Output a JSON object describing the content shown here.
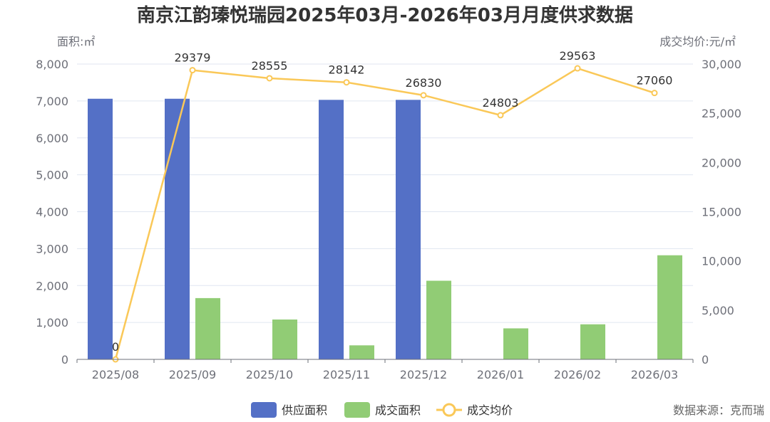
{
  "chart_data": {
    "type": "bar",
    "title": "南京江韵瑧悦瑞园2025年03月-2026年03月月度供求数据",
    "ylabel_left": "面积:㎡",
    "ylabel_right": "成交均价:元/㎡",
    "categories": [
      "2025/08",
      "2025/09",
      "2025/10",
      "2025/11",
      "2025/12",
      "2026/01",
      "2026/02",
      "2026/03"
    ],
    "ylim_left": [
      0,
      8000
    ],
    "yticks_left": [
      "0",
      "1,000",
      "2,000",
      "3,000",
      "4,000",
      "5,000",
      "6,000",
      "7,000",
      "8,000"
    ],
    "ylim_right": [
      0,
      30000
    ],
    "yticks_right": [
      "0",
      "5,000",
      "10,000",
      "15,000",
      "20,000",
      "25,000",
      "30,000"
    ],
    "series": [
      {
        "name": "供应面积",
        "type": "bar",
        "axis": "left",
        "color": "#5470c6",
        "values": [
          7060,
          7060,
          0,
          7030,
          7030,
          0,
          0,
          0
        ]
      },
      {
        "name": "成交面积",
        "type": "bar",
        "axis": "left",
        "color": "#91cc75",
        "values": [
          0,
          1660,
          1080,
          380,
          2130,
          840,
          950,
          2820
        ]
      },
      {
        "name": "成交均价",
        "type": "line",
        "axis": "right",
        "color": "#fac858",
        "values": [
          0,
          29379,
          28555,
          28142,
          26830,
          24803,
          29563,
          27060
        ],
        "labels": [
          "0",
          "29379",
          "28555",
          "28142",
          "26830",
          "24803",
          "29563",
          "27060"
        ]
      }
    ],
    "legend": [
      "供应面积",
      "成交面积",
      "成交均价"
    ],
    "legend_position": "bottom-center",
    "grid": true
  },
  "source": "数据来源：克而瑞"
}
